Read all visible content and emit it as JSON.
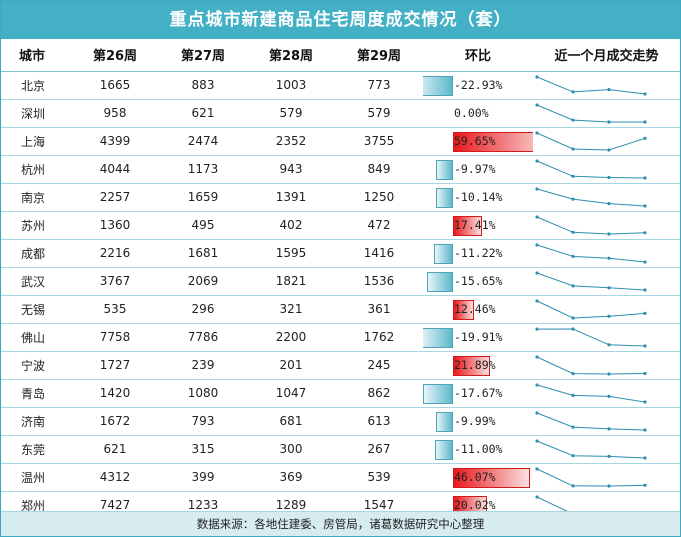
{
  "title": "重点城市新建商品住宅周度成交情况（套）",
  "headers": [
    "城市",
    "第26周",
    "第27周",
    "第28周",
    "第29周",
    "环比",
    "近一个月成交走势"
  ],
  "rows": [
    {
      "city": "北京",
      "w26": 1665,
      "w27": 883,
      "w28": 1003,
      "w29": 773,
      "chg_text": "-22.93%",
      "chg": -22.93
    },
    {
      "city": "深圳",
      "w26": 958,
      "w27": 621,
      "w28": 579,
      "w29": 579,
      "chg_text": "0.00%",
      "chg": 0.0
    },
    {
      "city": "上海",
      "w26": 4399,
      "w27": 2474,
      "w28": 2352,
      "w29": 3755,
      "chg_text": "59.65%",
      "chg": 59.65
    },
    {
      "city": "杭州",
      "w26": 4044,
      "w27": 1173,
      "w28": 943,
      "w29": 849,
      "chg_text": "-9.97%",
      "chg": -9.97
    },
    {
      "city": "南京",
      "w26": 2257,
      "w27": 1659,
      "w28": 1391,
      "w29": 1250,
      "chg_text": "-10.14%",
      "chg": -10.14
    },
    {
      "city": "苏州",
      "w26": 1360,
      "w27": 495,
      "w28": 402,
      "w29": 472,
      "chg_text": "17.41%",
      "chg": 17.41
    },
    {
      "city": "成都",
      "w26": 2216,
      "w27": 1681,
      "w28": 1595,
      "w29": 1416,
      "chg_text": "-11.22%",
      "chg": -11.22
    },
    {
      "city": "武汉",
      "w26": 3767,
      "w27": 2069,
      "w28": 1821,
      "w29": 1536,
      "chg_text": "-15.65%",
      "chg": -15.65
    },
    {
      "city": "无锡",
      "w26": 535,
      "w27": 296,
      "w28": 321,
      "w29": 361,
      "chg_text": "12.46%",
      "chg": 12.46
    },
    {
      "city": "佛山",
      "w26": 7758,
      "w27": 7786,
      "w28": 2200,
      "w29": 1762,
      "chg_text": "-19.91%",
      "chg": -19.91
    },
    {
      "city": "宁波",
      "w26": 1727,
      "w27": 239,
      "w28": 201,
      "w29": 245,
      "chg_text": "21.89%",
      "chg": 21.89
    },
    {
      "city": "青岛",
      "w26": 1420,
      "w27": 1080,
      "w28": 1047,
      "w29": 862,
      "chg_text": "-17.67%",
      "chg": -17.67
    },
    {
      "city": "济南",
      "w26": 1672,
      "w27": 793,
      "w28": 681,
      "w29": 613,
      "chg_text": "-9.99%",
      "chg": -9.99
    },
    {
      "city": "东莞",
      "w26": 621,
      "w27": 315,
      "w28": 300,
      "w29": 267,
      "chg_text": "-11.00%",
      "chg": -11.0
    },
    {
      "city": "温州",
      "w26": 4312,
      "w27": 399,
      "w28": 369,
      "w29": 539,
      "chg_text": "46.07%",
      "chg": 46.07
    },
    {
      "city": "郑州",
      "w26": 7427,
      "w27": 1233,
      "w28": 1289,
      "w29": 1547,
      "chg_text": "20.02%",
      "chg": 20.02
    }
  ],
  "colors": {
    "header_bg": "#43b0c6",
    "negative_bar": "#5cb8cc",
    "positive_bar": "#e8181c",
    "sparkline": "#2e8fb0",
    "footer_bg": "#d6ecf1"
  },
  "footer": "数据来源：各地住建委、房管局，诸葛数据研究中心整理"
}
